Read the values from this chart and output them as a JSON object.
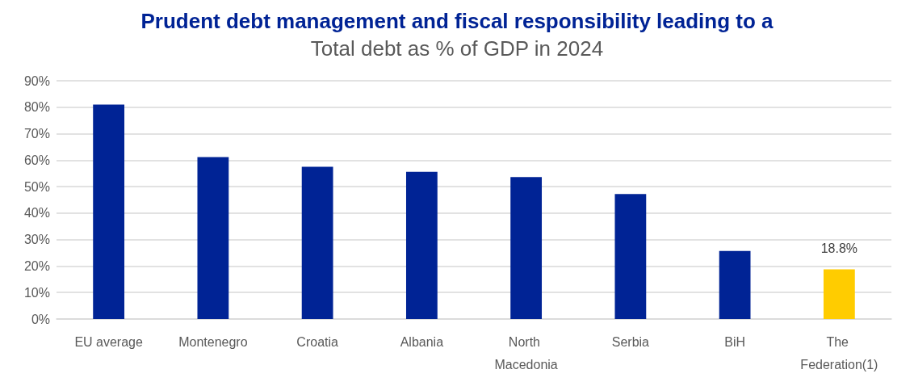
{
  "chart_data": {
    "type": "bar",
    "title": "Prudent debt management and fiscal responsibility leading to a",
    "subtitle": "Total debt as % of GDP in 2024",
    "categories": [
      "EU average",
      "Montenegro",
      "Croatia",
      "Albania",
      "North Macedonia",
      "Serbia",
      "BiH",
      "The Federation(1)"
    ],
    "values": [
      81,
      61.2,
      57.5,
      55.6,
      53.6,
      47.2,
      25.7,
      18.8
    ],
    "colors": [
      "#002395",
      "#002395",
      "#002395",
      "#002395",
      "#002395",
      "#002395",
      "#002395",
      "#ffcc00"
    ],
    "value_labels": [
      null,
      null,
      null,
      null,
      null,
      null,
      null,
      "18.8%"
    ],
    "ylim": [
      0,
      90
    ],
    "yticks": [
      {
        "value": 0,
        "label": "0%"
      },
      {
        "value": 10,
        "label": "10%"
      },
      {
        "value": 20,
        "label": "20%"
      },
      {
        "value": 30,
        "label": "30%"
      },
      {
        "value": 40,
        "label": "40%"
      },
      {
        "value": 50,
        "label": "50%"
      },
      {
        "value": 60,
        "label": "60%"
      },
      {
        "value": 70,
        "label": "70%"
      },
      {
        "value": 80,
        "label": "80%"
      },
      {
        "value": 90,
        "label": "90%"
      }
    ],
    "grid": "y"
  }
}
